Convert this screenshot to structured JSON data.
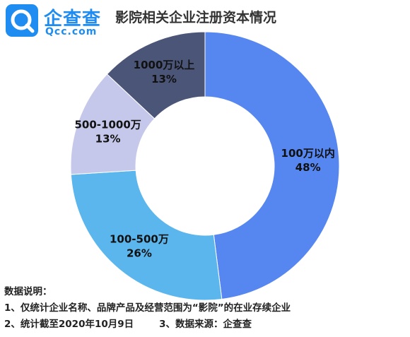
{
  "brand": {
    "name_cn": "企查查",
    "name_en": "Qcc.com",
    "logo_color": "#1e8cf0"
  },
  "chart_data": {
    "type": "pie",
    "title": "影院相关企业注册资本情况",
    "donut": true,
    "slices": [
      {
        "label": "100万以内",
        "value": 48,
        "value_label": "48%",
        "color": "#5686f0"
      },
      {
        "label": "100-500万",
        "value": 26,
        "value_label": "26%",
        "color": "#5bb6ee"
      },
      {
        "label": "500-1000万",
        "value": 13,
        "value_label": "13%",
        "color": "#c5c8ea"
      },
      {
        "label": "1000万以上",
        "value": 13,
        "value_label": "13%",
        "color": "#4a5578"
      }
    ]
  },
  "notes": {
    "heading": "数据说明：",
    "line1": "1、仅统计企业名称、品牌产品及经营范围为“影院”的在业存续企业",
    "line2a": "2、统计截至2020年10月9日",
    "line2b": "3、数据来源：企查查"
  }
}
